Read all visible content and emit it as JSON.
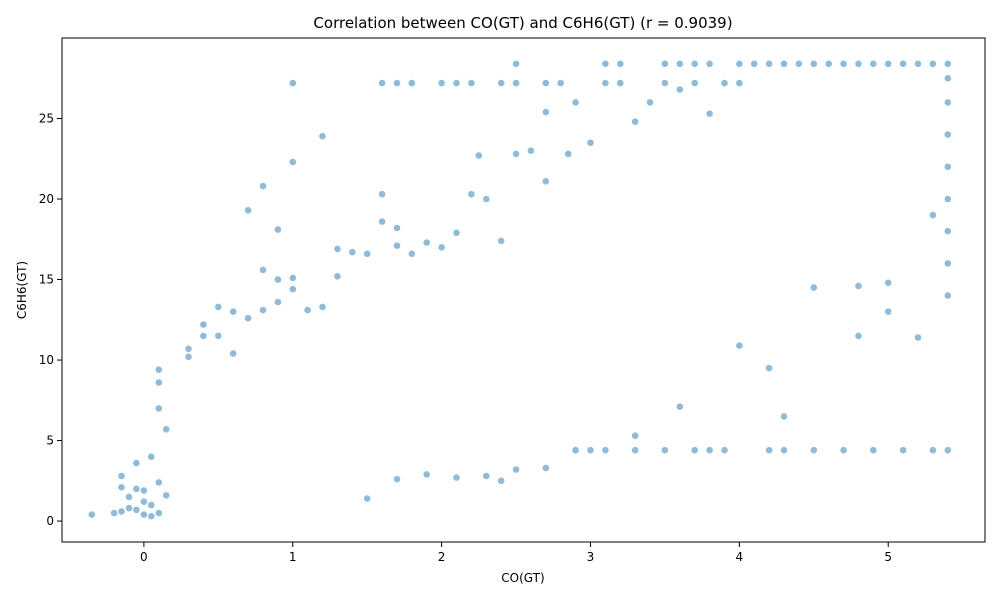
{
  "chart_data": {
    "type": "scatter",
    "title": "Correlation between CO(GT) and C6H6(GT) (r = 0.9039)",
    "xlabel": "CO(GT)",
    "ylabel": "C6H6(GT)",
    "xlim": [
      -0.55,
      5.65
    ],
    "ylim": [
      -1.3,
      30.0
    ],
    "xticks": [
      0,
      1,
      2,
      3,
      4,
      5
    ],
    "yticks": [
      0,
      5,
      10,
      15,
      20,
      25
    ],
    "grid": false,
    "marker_color": "#1f77b4",
    "marker_alpha": 0.5,
    "series": [
      {
        "points": [
          [
            -0.35,
            0.4
          ],
          [
            -0.2,
            0.5
          ],
          [
            -0.15,
            0.6
          ],
          [
            -0.15,
            2.8
          ],
          [
            -0.15,
            2.1
          ],
          [
            -0.1,
            0.8
          ],
          [
            -0.1,
            1.5
          ],
          [
            -0.05,
            0.7
          ],
          [
            -0.05,
            2.0
          ],
          [
            -0.05,
            3.6
          ],
          [
            0.0,
            0.4
          ],
          [
            0.0,
            1.2
          ],
          [
            0.0,
            1.9
          ],
          [
            0.05,
            0.3
          ],
          [
            0.05,
            1.0
          ],
          [
            0.05,
            4.0
          ],
          [
            0.1,
            0.5
          ],
          [
            0.1,
            2.4
          ],
          [
            0.1,
            7.0
          ],
          [
            0.1,
            8.6
          ],
          [
            0.1,
            9.4
          ],
          [
            0.15,
            1.6
          ],
          [
            0.15,
            5.7
          ],
          [
            0.3,
            10.2
          ],
          [
            0.3,
            10.7
          ],
          [
            0.4,
            11.5
          ],
          [
            0.4,
            12.2
          ],
          [
            0.5,
            13.3
          ],
          [
            0.5,
            11.5
          ],
          [
            0.6,
            10.4
          ],
          [
            0.6,
            13.0
          ],
          [
            0.7,
            12.6
          ],
          [
            0.7,
            19.3
          ],
          [
            0.8,
            13.1
          ],
          [
            0.8,
            15.6
          ],
          [
            0.8,
            20.8
          ],
          [
            0.9,
            13.6
          ],
          [
            0.9,
            18.1
          ],
          [
            0.9,
            15.0
          ],
          [
            1.0,
            27.2
          ],
          [
            1.0,
            22.3
          ],
          [
            1.0,
            15.1
          ],
          [
            1.0,
            14.4
          ],
          [
            1.1,
            13.1
          ],
          [
            1.2,
            23.9
          ],
          [
            1.2,
            13.3
          ],
          [
            1.3,
            16.9
          ],
          [
            1.3,
            15.2
          ],
          [
            1.4,
            16.7
          ],
          [
            1.5,
            16.6
          ],
          [
            1.5,
            1.4
          ],
          [
            1.6,
            27.2
          ],
          [
            1.6,
            20.3
          ],
          [
            1.6,
            18.6
          ],
          [
            1.7,
            27.2
          ],
          [
            1.7,
            18.2
          ],
          [
            1.7,
            17.1
          ],
          [
            1.8,
            27.2
          ],
          [
            1.8,
            16.6
          ],
          [
            1.9,
            17.3
          ],
          [
            2.0,
            27.2
          ],
          [
            2.0,
            17.0
          ],
          [
            2.1,
            27.2
          ],
          [
            2.1,
            17.9
          ],
          [
            2.2,
            27.2
          ],
          [
            2.2,
            20.3
          ],
          [
            2.25,
            22.7
          ],
          [
            2.3,
            20.0
          ],
          [
            2.4,
            27.2
          ],
          [
            2.4,
            17.4
          ],
          [
            2.5,
            28.4
          ],
          [
            2.5,
            27.2
          ],
          [
            2.5,
            22.8
          ],
          [
            2.6,
            23.0
          ],
          [
            2.7,
            27.2
          ],
          [
            2.7,
            25.4
          ],
          [
            2.7,
            21.1
          ],
          [
            2.8,
            27.2
          ],
          [
            2.85,
            22.8
          ],
          [
            2.9,
            26.0
          ],
          [
            3.0,
            23.5
          ],
          [
            3.1,
            28.4
          ],
          [
            3.1,
            27.2
          ],
          [
            3.2,
            28.4
          ],
          [
            3.2,
            27.2
          ],
          [
            3.3,
            24.8
          ],
          [
            3.4,
            26.0
          ],
          [
            3.5,
            28.4
          ],
          [
            3.5,
            27.2
          ],
          [
            3.6,
            28.4
          ],
          [
            3.6,
            26.8
          ],
          [
            3.7,
            28.4
          ],
          [
            3.7,
            27.2
          ],
          [
            3.8,
            28.4
          ],
          [
            3.8,
            25.3
          ],
          [
            3.9,
            27.2
          ],
          [
            4.0,
            28.4
          ],
          [
            4.0,
            27.2
          ],
          [
            4.1,
            28.4
          ],
          [
            4.2,
            28.4
          ],
          [
            4.3,
            28.4
          ],
          [
            4.4,
            28.4
          ],
          [
            4.5,
            28.4
          ],
          [
            4.6,
            28.4
          ],
          [
            4.7,
            28.4
          ],
          [
            4.8,
            28.4
          ],
          [
            4.9,
            28.4
          ],
          [
            5.0,
            28.4
          ],
          [
            5.1,
            28.4
          ],
          [
            5.2,
            28.4
          ],
          [
            5.3,
            28.4
          ],
          [
            5.4,
            28.4
          ],
          [
            5.4,
            27.5
          ],
          [
            5.4,
            26.0
          ],
          [
            5.4,
            24.0
          ],
          [
            5.4,
            22.0
          ],
          [
            5.4,
            20.0
          ],
          [
            5.4,
            18.0
          ],
          [
            5.4,
            16.0
          ],
          [
            5.4,
            14.0
          ],
          [
            5.4,
            4.4
          ],
          [
            5.3,
            4.4
          ],
          [
            5.1,
            4.4
          ],
          [
            5.0,
            13.0
          ],
          [
            5.0,
            14.8
          ],
          [
            5.2,
            11.4
          ],
          [
            5.3,
            19.0
          ],
          [
            4.9,
            4.4
          ],
          [
            4.8,
            11.5
          ],
          [
            4.8,
            14.6
          ],
          [
            4.7,
            4.4
          ],
          [
            4.5,
            4.4
          ],
          [
            4.5,
            14.5
          ],
          [
            4.3,
            4.4
          ],
          [
            4.3,
            6.5
          ],
          [
            4.2,
            4.4
          ],
          [
            4.2,
            9.5
          ],
          [
            4.0,
            10.9
          ],
          [
            3.9,
            4.4
          ],
          [
            3.8,
            4.4
          ],
          [
            3.7,
            4.4
          ],
          [
            3.6,
            7.1
          ],
          [
            3.5,
            4.4
          ],
          [
            3.3,
            4.4
          ],
          [
            3.3,
            5.3
          ],
          [
            3.1,
            4.4
          ],
          [
            3.0,
            4.4
          ],
          [
            2.9,
            4.4
          ],
          [
            2.7,
            3.3
          ],
          [
            2.5,
            3.2
          ],
          [
            2.4,
            2.5
          ],
          [
            2.3,
            2.8
          ],
          [
            2.1,
            2.7
          ],
          [
            1.9,
            2.9
          ],
          [
            1.7,
            2.6
          ]
        ]
      }
    ]
  }
}
